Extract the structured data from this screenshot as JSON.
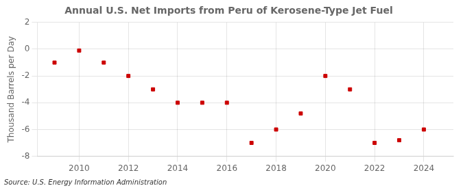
{
  "chart_data": {
    "type": "scatter",
    "title": "Annual U.S. Net Imports from Peru of Kerosene-Type Jet Fuel",
    "ylabel": "Thousand Barrels per Day",
    "annotations": [
      "Source: U.S. Energy Information Administration"
    ],
    "x": [
      2009,
      2010,
      2011,
      2012,
      2013,
      2014,
      2015,
      2016,
      2017,
      2018,
      2019,
      2020,
      2021,
      2022,
      2023,
      2024
    ],
    "values": [
      -1.0,
      -0.1,
      -1.0,
      -2.0,
      -3.0,
      -4.0,
      -4.0,
      -4.0,
      -7.0,
      -6.0,
      -4.8,
      -2.0,
      -3.0,
      -7.0,
      -6.8,
      -6.0
    ],
    "color": "#cc0000",
    "marker": "square",
    "xlim": [
      2008.3,
      2025.2
    ],
    "xticks": [
      2010,
      2012,
      2014,
      2016,
      2018,
      2020,
      2022,
      2024
    ],
    "ylim": [
      -8,
      2
    ],
    "yticks": [
      -8,
      -6,
      -4,
      -2,
      0,
      2
    ],
    "grid": true
  }
}
